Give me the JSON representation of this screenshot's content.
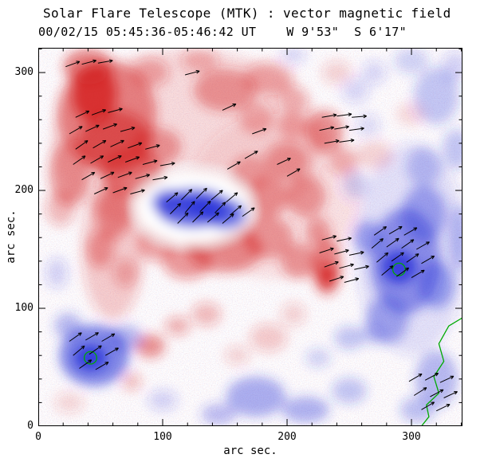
{
  "chart_data": {
    "type": "heatmap",
    "title": "Solar Flare Telescope (MTK) : vector magnetic field",
    "subtitle": "00/02/15 05:45:36-05:46:42 UT    W 9'53\"  S 6'17\"",
    "xlabel": "arc sec.",
    "ylabel": "arc sec.",
    "x_range": [
      0,
      341
    ],
    "y_range": [
      0,
      321
    ],
    "x_ticks": [
      0,
      100,
      200,
      300
    ],
    "y_ticks": [
      0,
      100,
      200,
      300
    ],
    "minor_tick_interval": 20,
    "colors": {
      "positive": "#d42020",
      "negative": "#2832d8",
      "contour": "#00aa00",
      "vectors": "#000000",
      "frame": "#000000",
      "text": "#000000",
      "background": "#ffffff"
    },
    "blobs": [
      [
        120,
        240,
        110,
        80,
        0.13,
        "p"
      ],
      [
        190,
        195,
        70,
        70,
        0.1,
        "p"
      ],
      [
        60,
        150,
        25,
        60,
        0.22,
        "p"
      ],
      [
        300,
        150,
        45,
        90,
        0.13,
        "n"
      ],
      [
        55,
        265,
        40,
        45,
        0.5,
        "p"
      ],
      [
        45,
        282,
        18,
        25,
        0.8,
        "p"
      ],
      [
        40,
        305,
        20,
        15,
        0.55,
        "p"
      ],
      [
        62,
        240,
        30,
        28,
        0.55,
        "p"
      ],
      [
        25,
        215,
        16,
        28,
        0.45,
        "p"
      ],
      [
        75,
        215,
        25,
        20,
        0.5,
        "p"
      ],
      [
        95,
        237,
        20,
        16,
        0.42,
        "p"
      ],
      [
        60,
        180,
        14,
        22,
        0.42,
        "p"
      ],
      [
        50,
        150,
        11,
        16,
        0.38,
        "p"
      ],
      [
        70,
        130,
        10,
        12,
        0.28,
        "p"
      ],
      [
        18,
        185,
        12,
        15,
        0.28,
        "p"
      ],
      [
        90,
        300,
        15,
        12,
        0.32,
        "p"
      ],
      [
        130,
        310,
        15,
        10,
        0.28,
        "p"
      ],
      [
        150,
        285,
        25,
        18,
        0.42,
        "p"
      ],
      [
        185,
        295,
        20,
        14,
        0.32,
        "p"
      ],
      [
        175,
        262,
        14,
        14,
        0.28,
        "p"
      ],
      [
        205,
        277,
        12,
        12,
        0.25,
        "p"
      ],
      [
        240,
        300,
        12,
        10,
        0.18,
        "p"
      ],
      [
        170,
        215,
        15,
        15,
        0.32,
        "p"
      ],
      [
        185,
        195,
        15,
        18,
        0.38,
        "p"
      ],
      [
        200,
        225,
        18,
        16,
        0.38,
        "p"
      ],
      [
        215,
        195,
        16,
        18,
        0.42,
        "p"
      ],
      [
        230,
        250,
        15,
        18,
        0.48,
        "p"
      ],
      [
        245,
        225,
        12,
        12,
        0.28,
        "p"
      ],
      [
        205,
        255,
        12,
        12,
        0.28,
        "p"
      ],
      [
        150,
        150,
        30,
        20,
        0.48,
        "p"
      ],
      [
        185,
        160,
        20,
        18,
        0.42,
        "p"
      ],
      [
        120,
        140,
        20,
        15,
        0.42,
        "p"
      ],
      [
        95,
        155,
        15,
        15,
        0.38,
        "p"
      ],
      [
        210,
        140,
        15,
        15,
        0.42,
        "p"
      ],
      [
        135,
        95,
        12,
        10,
        0.28,
        "p"
      ],
      [
        160,
        60,
        10,
        8,
        0.18,
        "p"
      ],
      [
        185,
        75,
        15,
        12,
        0.22,
        "p"
      ],
      [
        205,
        95,
        10,
        10,
        0.18,
        "p"
      ],
      [
        232,
        135,
        12,
        24,
        0.52,
        "p"
      ],
      [
        232,
        128,
        7,
        10,
        0.82,
        "p"
      ],
      [
        225,
        165,
        10,
        12,
        0.42,
        "p"
      ],
      [
        90,
        68,
        12,
        10,
        0.48,
        "p"
      ],
      [
        112,
        85,
        10,
        8,
        0.32,
        "p"
      ],
      [
        75,
        38,
        8,
        8,
        0.26,
        "p"
      ],
      [
        25,
        20,
        12,
        9,
        0.16,
        "p"
      ],
      [
        270,
        230,
        15,
        12,
        0.18,
        "p"
      ],
      [
        300,
        265,
        12,
        10,
        0.13,
        "p"
      ],
      [
        125,
        185,
        46,
        30,
        1,
        "w"
      ],
      [
        125,
        185,
        30,
        17,
        0.72,
        "n"
      ],
      [
        105,
        190,
        14,
        11,
        0.62,
        "n"
      ],
      [
        150,
        180,
        17,
        13,
        0.68,
        "n"
      ],
      [
        130,
        186,
        14,
        9,
        0.88,
        "n"
      ],
      [
        295,
        140,
        28,
        45,
        0.48,
        "n"
      ],
      [
        290,
        135,
        14,
        14,
        0.82,
        "n"
      ],
      [
        310,
        180,
        18,
        24,
        0.38,
        "n"
      ],
      [
        280,
        90,
        17,
        20,
        0.36,
        "n"
      ],
      [
        320,
        120,
        14,
        20,
        0.42,
        "n"
      ],
      [
        265,
        160,
        12,
        14,
        0.38,
        "n"
      ],
      [
        310,
        220,
        14,
        17,
        0.26,
        "n"
      ],
      [
        338,
        160,
        8,
        28,
        0.28,
        "n"
      ],
      [
        45,
        60,
        28,
        26,
        0.58,
        "n"
      ],
      [
        42,
        58,
        13,
        11,
        0.85,
        "n"
      ],
      [
        70,
        75,
        14,
        11,
        0.33,
        "n"
      ],
      [
        24,
        85,
        11,
        11,
        0.33,
        "n"
      ],
      [
        175,
        25,
        24,
        17,
        0.38,
        "n"
      ],
      [
        215,
        14,
        19,
        11,
        0.36,
        "n"
      ],
      [
        250,
        30,
        14,
        11,
        0.26,
        "n"
      ],
      [
        145,
        10,
        14,
        9,
        0.3,
        "n"
      ],
      [
        250,
        75,
        12,
        10,
        0.26,
        "n"
      ],
      [
        268,
        78,
        10,
        9,
        0.2,
        "n"
      ],
      [
        225,
        58,
        10,
        8,
        0.2,
        "n"
      ],
      [
        320,
        40,
        17,
        24,
        0.33,
        "n"
      ],
      [
        305,
        14,
        14,
        11,
        0.28,
        "n"
      ],
      [
        100,
        22,
        12,
        9,
        0.18,
        "n"
      ],
      [
        320,
        280,
        18,
        24,
        0.26,
        "n"
      ],
      [
        300,
        310,
        14,
        11,
        0.2,
        "n"
      ],
      [
        336,
        235,
        11,
        17,
        0.26,
        "n"
      ],
      [
        270,
        300,
        10,
        10,
        0.16,
        "n"
      ],
      [
        255,
        285,
        11,
        11,
        0.16,
        "n"
      ],
      [
        265,
        255,
        10,
        10,
        0.14,
        "n"
      ],
      [
        255,
        205,
        10,
        12,
        0.2,
        "n"
      ],
      [
        15,
        130,
        9,
        13,
        0.18,
        "n"
      ],
      [
        335,
        305,
        11,
        13,
        0.18,
        "n"
      ],
      [
        205,
        315,
        10,
        8,
        0.16,
        "n"
      ]
    ],
    "vectors": {
      "length": 12,
      "items": [
        [
          30,
          262,
          25
        ],
        [
          43,
          264,
          20
        ],
        [
          56,
          266,
          15
        ],
        [
          25,
          248,
          30
        ],
        [
          38,
          250,
          25
        ],
        [
          52,
          252,
          20
        ],
        [
          66,
          250,
          15
        ],
        [
          30,
          235,
          35
        ],
        [
          44,
          236,
          30
        ],
        [
          58,
          237,
          25
        ],
        [
          72,
          236,
          20
        ],
        [
          86,
          235,
          15
        ],
        [
          28,
          222,
          35
        ],
        [
          42,
          223,
          30
        ],
        [
          56,
          224,
          25
        ],
        [
          70,
          224,
          20
        ],
        [
          84,
          222,
          15
        ],
        [
          98,
          221,
          10
        ],
        [
          35,
          209,
          30
        ],
        [
          50,
          210,
          25
        ],
        [
          64,
          211,
          20
        ],
        [
          78,
          210,
          15
        ],
        [
          92,
          209,
          10
        ],
        [
          45,
          197,
          25
        ],
        [
          60,
          198,
          20
        ],
        [
          74,
          197,
          15
        ],
        [
          22,
          305,
          20
        ],
        [
          35,
          307,
          15
        ],
        [
          48,
          308,
          10
        ],
        [
          103,
          190,
          40
        ],
        [
          115,
          192,
          45
        ],
        [
          127,
          193,
          45
        ],
        [
          139,
          192,
          40
        ],
        [
          151,
          190,
          40
        ],
        [
          106,
          180,
          45
        ],
        [
          118,
          181,
          50
        ],
        [
          130,
          182,
          45
        ],
        [
          142,
          181,
          45
        ],
        [
          154,
          179,
          40
        ],
        [
          164,
          178,
          35
        ],
        [
          112,
          172,
          45
        ],
        [
          124,
          173,
          45
        ],
        [
          136,
          173,
          40
        ],
        [
          148,
          172,
          40
        ],
        [
          152,
          218,
          30
        ],
        [
          166,
          227,
          30
        ],
        [
          148,
          268,
          25
        ],
        [
          118,
          298,
          15
        ],
        [
          192,
          222,
          25
        ],
        [
          200,
          212,
          30
        ],
        [
          172,
          248,
          20
        ],
        [
          228,
          262,
          10
        ],
        [
          240,
          263,
          8
        ],
        [
          252,
          262,
          5
        ],
        [
          226,
          251,
          12
        ],
        [
          238,
          252,
          10
        ],
        [
          250,
          251,
          8
        ],
        [
          230,
          240,
          10
        ],
        [
          242,
          241,
          8
        ],
        [
          228,
          158,
          15
        ],
        [
          240,
          157,
          12
        ],
        [
          226,
          147,
          18
        ],
        [
          238,
          146,
          15
        ],
        [
          250,
          145,
          12
        ],
        [
          230,
          135,
          20
        ],
        [
          242,
          134,
          15
        ],
        [
          254,
          133,
          12
        ],
        [
          234,
          123,
          18
        ],
        [
          246,
          122,
          15
        ],
        [
          270,
          162,
          35
        ],
        [
          282,
          163,
          30
        ],
        [
          294,
          162,
          30
        ],
        [
          268,
          151,
          40
        ],
        [
          280,
          152,
          35
        ],
        [
          292,
          151,
          35
        ],
        [
          304,
          150,
          30
        ],
        [
          272,
          139,
          40
        ],
        [
          284,
          140,
          35
        ],
        [
          296,
          139,
          35
        ],
        [
          308,
          138,
          30
        ],
        [
          276,
          128,
          40
        ],
        [
          288,
          127,
          35
        ],
        [
          300,
          126,
          30
        ],
        [
          25,
          72,
          35
        ],
        [
          38,
          73,
          30
        ],
        [
          51,
          72,
          30
        ],
        [
          28,
          60,
          40
        ],
        [
          41,
          61,
          35
        ],
        [
          54,
          60,
          30
        ],
        [
          33,
          49,
          35
        ],
        [
          46,
          48,
          30
        ],
        [
          298,
          38,
          30
        ],
        [
          311,
          39,
          28
        ],
        [
          323,
          37,
          25
        ],
        [
          302,
          26,
          32
        ],
        [
          315,
          25,
          28
        ],
        [
          326,
          24,
          25
        ],
        [
          308,
          14,
          30
        ],
        [
          320,
          13,
          26
        ]
      ]
    },
    "contours": {
      "circles": [
        [
          290,
          133,
          5
        ],
        [
          42,
          58,
          5
        ]
      ],
      "path": [
        [
          341,
          92
        ],
        [
          330,
          85
        ],
        [
          322,
          70
        ],
        [
          326,
          55
        ],
        [
          318,
          42
        ],
        [
          322,
          28
        ],
        [
          312,
          18
        ],
        [
          314,
          8
        ],
        [
          308,
          0
        ]
      ]
    }
  }
}
